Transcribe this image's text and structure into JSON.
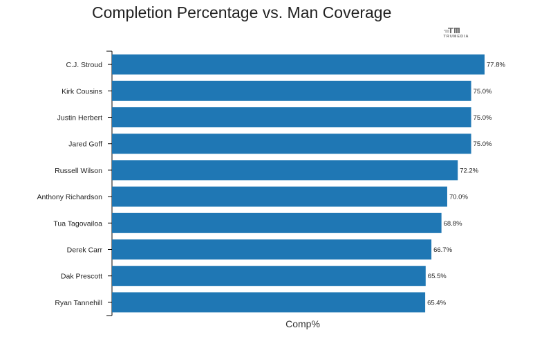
{
  "chart_data": {
    "type": "bar",
    "orientation": "horizontal",
    "title": "Completion Percentage vs. Man Coverage",
    "xlabel": "Comp%",
    "ylabel": "",
    "categories": [
      "C.J. Stroud",
      "Kirk Cousins",
      "Justin Herbert",
      "Jared Goff",
      "Russell Wilson",
      "Anthony Richardson",
      "Tua Tagovailoa",
      "Derek Carr",
      "Dak Prescott",
      "Ryan Tannehill"
    ],
    "values": [
      77.8,
      75.0,
      75.0,
      75.0,
      72.2,
      70.0,
      68.8,
      66.7,
      65.5,
      65.4
    ],
    "value_labels": [
      "77.8%",
      "75.0%",
      "75.0%",
      "75.0%",
      "72.2%",
      "70.0%",
      "68.8%",
      "66.7%",
      "65.5%",
      "65.4%"
    ],
    "xlim": [
      0,
      77.8
    ],
    "bar_color": "#1f77b4",
    "grid": false,
    "watermark": "TRUMEDIA"
  }
}
